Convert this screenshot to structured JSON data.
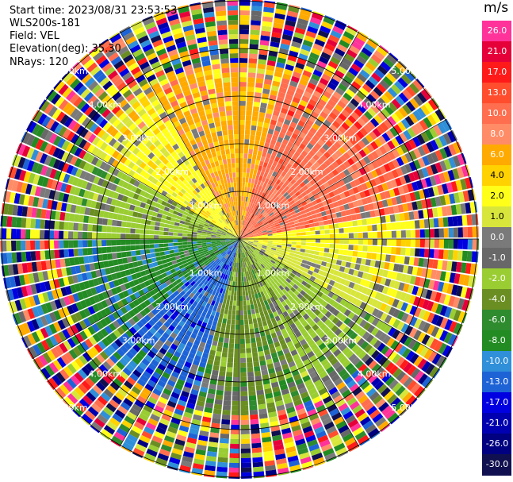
{
  "header": {
    "start_time": "Start time: 2023/08/31 23:53:53",
    "site": "WLS200s-181",
    "field": "Field: VEL",
    "elevation": "Elevation(deg): 35.30",
    "nrays": "NRays: 120"
  },
  "range_rings": {
    "labels": [
      "1.00km",
      "2.00km",
      "3.00km",
      "4.00km",
      "5.00km"
    ]
  },
  "colorbar": {
    "unit": "m/s",
    "ticks": [
      "26.0",
      "21.0",
      "17.0",
      "13.0",
      "10.0",
      "8.0",
      "6.0",
      "4.0",
      "2.0",
      "1.0",
      "0.0",
      "-1.0",
      "-2.0",
      "-4.0",
      "-6.0",
      "-8.0",
      "-10.0",
      "-13.0",
      "-17.0",
      "-21.0",
      "-26.0",
      "-30.0"
    ],
    "colors": [
      "#ff3399",
      "#e6003a",
      "#ff1a1a",
      "#ff4d2e",
      "#ff6e4f",
      "#ff8c66",
      "#ffaa00",
      "#ffd200",
      "#ffff1a",
      "#d8e63c",
      "#7a7a7a",
      "#686868",
      "#9acd32",
      "#6b8e23",
      "#2e8b2e",
      "#228b22",
      "#2f8fd8",
      "#1e63d6",
      "#0000e0",
      "#0000b0",
      "#000080",
      "#101050"
    ]
  }
}
